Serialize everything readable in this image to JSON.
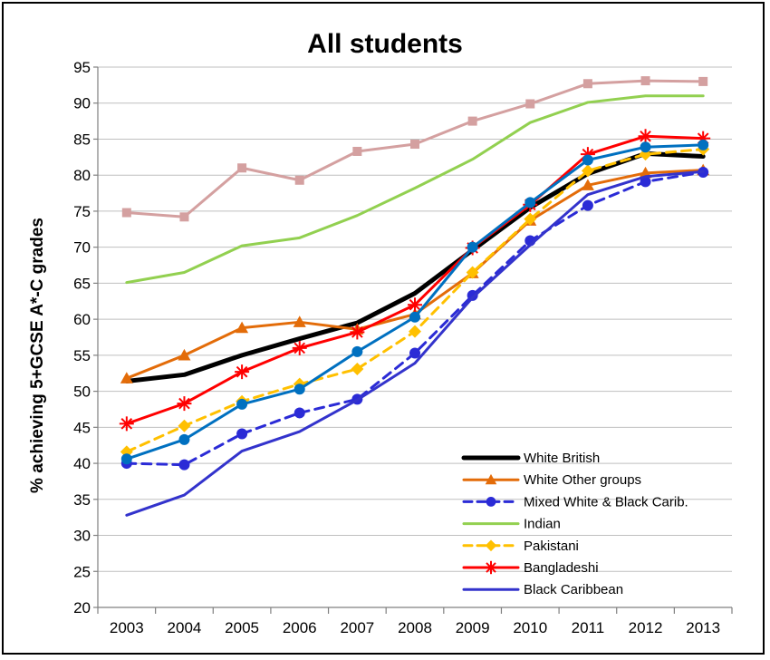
{
  "chart_data": {
    "type": "line",
    "title": "All students",
    "ylabel": "% achieving 5+GCSE A*-C grades",
    "xlabel": "",
    "x": [
      "2003",
      "2004",
      "2005",
      "2006",
      "2007",
      "2008",
      "2009",
      "2010",
      "2011",
      "2012",
      "2013"
    ],
    "ylim": [
      20,
      95
    ],
    "yticks": [
      20,
      25,
      30,
      35,
      40,
      45,
      50,
      55,
      60,
      65,
      70,
      75,
      80,
      85,
      90,
      95
    ],
    "grid": "horizontal",
    "legend_position": "bottom-right",
    "series": [
      {
        "name": "",
        "color": "#d4a0a0",
        "style": "solid",
        "marker": "square",
        "width": 3,
        "values": [
          74.8,
          74.2,
          81.0,
          79.3,
          83.3,
          84.3,
          87.5,
          89.9,
          92.7,
          93.1,
          93.0
        ]
      },
      {
        "name": "Indian",
        "color": "#92d050",
        "style": "solid",
        "marker": "none",
        "width": 3,
        "values": [
          65.1,
          66.5,
          70.2,
          71.3,
          74.4,
          78.2,
          82.2,
          87.3,
          90.1,
          91.0,
          91.0
        ]
      },
      {
        "name": "White British",
        "color": "#000000",
        "style": "solid",
        "marker": "none",
        "width": 5,
        "values": [
          51.4,
          52.3,
          55.0,
          57.3,
          59.5,
          63.6,
          69.6,
          75.5,
          80.2,
          83.0,
          82.6
        ]
      },
      {
        "name": "White Other groups",
        "color": "#e36c09",
        "style": "solid",
        "marker": "triangle",
        "width": 3,
        "values": [
          51.8,
          55.0,
          58.8,
          59.6,
          58.6,
          60.7,
          66.4,
          73.7,
          78.6,
          80.3,
          80.7
        ]
      },
      {
        "name": "Mixed White & Black Carib.",
        "color": "#2b2bd6",
        "style": "dashed",
        "marker": "circle",
        "width": 3,
        "values": [
          40.0,
          39.8,
          44.1,
          47.0,
          48.9,
          55.3,
          63.3,
          70.9,
          75.8,
          79.1,
          80.4
        ]
      },
      {
        "name": "Pakistani",
        "color": "#ffc000",
        "style": "dashed",
        "marker": "diamond",
        "width": 3,
        "values": [
          41.6,
          45.2,
          48.6,
          51.0,
          53.1,
          58.3,
          66.5,
          73.9,
          80.6,
          82.9,
          83.6
        ]
      },
      {
        "name": "Bangladeshi",
        "color": "#ff0000",
        "style": "solid",
        "marker": "asterisk",
        "width": 3,
        "values": [
          45.5,
          48.3,
          52.7,
          56.0,
          58.2,
          62.0,
          69.9,
          75.9,
          82.9,
          85.4,
          85.1
        ]
      },
      {
        "name": "",
        "color": "#0070c0",
        "style": "solid",
        "marker": "circle",
        "width": 3,
        "values": [
          40.6,
          43.3,
          48.2,
          50.3,
          55.5,
          60.3,
          70.0,
          76.2,
          82.1,
          83.9,
          84.2
        ]
      },
      {
        "name": "Black Caribbean",
        "color": "#3333cc",
        "style": "solid",
        "marker": "none",
        "width": 3,
        "values": [
          32.8,
          35.6,
          41.7,
          44.4,
          48.8,
          53.9,
          63.0,
          70.3,
          77.3,
          79.8,
          80.5
        ]
      }
    ],
    "legend": [
      {
        "label": "White British",
        "series_index": 2
      },
      {
        "label": "White Other groups",
        "series_index": 3
      },
      {
        "label": "Mixed White & Black Carib.",
        "series_index": 4
      },
      {
        "label": "Indian",
        "series_index": 1
      },
      {
        "label": "Pakistani",
        "series_index": 5
      },
      {
        "label": "Bangladeshi",
        "series_index": 6
      },
      {
        "label": "Black Caribbean",
        "series_index": 8
      }
    ]
  }
}
